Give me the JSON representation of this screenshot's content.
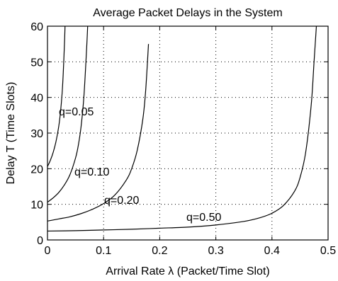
{
  "chart_data": {
    "type": "line",
    "title": "Average Packet Delays in the System",
    "xlabel": "Arrival Rate λ (Packet/Time Slot)",
    "ylabel": "Delay T (Time Slots)",
    "xlim": [
      0,
      0.5
    ],
    "ylim": [
      0,
      60
    ],
    "xticks": [
      0,
      0.1,
      0.2,
      0.3,
      0.4,
      0.5
    ],
    "xtick_labels": [
      "0",
      "0.1",
      "0.2",
      "0.3",
      "0.4",
      "0.5"
    ],
    "yticks": [
      0,
      10,
      20,
      30,
      40,
      50,
      60
    ],
    "ytick_labels": [
      "0",
      "10",
      "20",
      "30",
      "40",
      "50",
      "60"
    ],
    "grid": true,
    "series": [
      {
        "name": "q=0.05",
        "x": [
          0,
          0.005,
          0.01,
          0.015,
          0.02,
          0.023,
          0.026,
          0.028,
          0.03,
          0.031,
          0.032
        ],
        "y": [
          20.6,
          22.3,
          24.5,
          27.5,
          31.8,
          35.6,
          41.0,
          46.5,
          54.0,
          58.5,
          64.0
        ]
      },
      {
        "name": "q=0.10",
        "x": [
          0,
          0.01,
          0.02,
          0.03,
          0.04,
          0.05,
          0.055,
          0.06,
          0.065,
          0.07,
          0.073
        ],
        "y": [
          10.6,
          11.8,
          13.3,
          15.4,
          18.3,
          23.0,
          26.6,
          32.0,
          40.5,
          54.5,
          65.0
        ]
      },
      {
        "name": "q=0.20",
        "x": [
          0,
          0.02,
          0.04,
          0.06,
          0.08,
          0.1,
          0.12,
          0.14,
          0.15,
          0.16,
          0.17,
          0.175,
          0.18
        ],
        "y": [
          5.3,
          5.9,
          6.5,
          7.4,
          8.6,
          10.2,
          12.6,
          16.7,
          20.0,
          25.2,
          34.0,
          42.0,
          55.0
        ]
      },
      {
        "name": "q=0.50",
        "x": [
          0,
          0.05,
          0.1,
          0.15,
          0.2,
          0.25,
          0.3,
          0.35,
          0.38,
          0.4,
          0.42,
          0.44,
          0.45,
          0.46,
          0.47,
          0.475,
          0.48
        ],
        "y": [
          2.5,
          2.6,
          2.8,
          3.0,
          3.3,
          3.6,
          4.2,
          5.2,
          6.3,
          7.5,
          9.6,
          13.6,
          17.5,
          24.5,
          38.0,
          50.0,
          62.0
        ]
      }
    ],
    "annotations": [
      "q=0.05",
      "q=0.10",
      "q=0.20",
      "q=0.50"
    ]
  }
}
